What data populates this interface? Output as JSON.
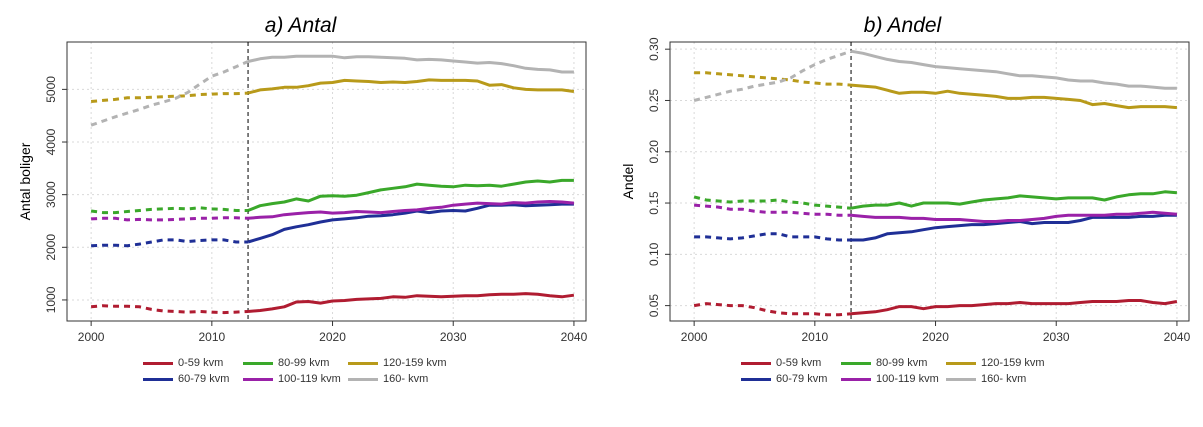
{
  "panels": [
    {
      "title": "a) Antal"
    },
    {
      "title": "b) Andel"
    }
  ],
  "legend": [
    {
      "label": "0-59 kvm",
      "color": "#b01c31"
    },
    {
      "label": "60-79 kvm",
      "color": "#1f2f96"
    },
    {
      "label": "80-99 kvm",
      "color": "#3aa82a"
    },
    {
      "label": "100-119 kvm",
      "color": "#9a21a8"
    },
    {
      "label": "120-159 kvm",
      "color": "#b89a1a"
    },
    {
      "label": "160- kvm",
      "color": "#b3b3b3"
    }
  ],
  "chart_data": [
    {
      "type": "line",
      "title": "a) Antal",
      "xlabel": "",
      "ylabel": "Antal boliger",
      "xlim": [
        1998,
        2041
      ],
      "ylim": [
        600,
        5900
      ],
      "xticks": [
        2000,
        2010,
        2020,
        2030,
        2040
      ],
      "yticks": [
        1000,
        2000,
        3000,
        4000,
        5000
      ],
      "grid": true,
      "split_year": 2013,
      "solid_style": "solid (2013 onward)",
      "dashed_style": "dashed (before 2013)",
      "x": [
        2000,
        2001,
        2002,
        2003,
        2004,
        2005,
        2006,
        2007,
        2008,
        2009,
        2010,
        2011,
        2012,
        2013,
        2014,
        2015,
        2016,
        2017,
        2018,
        2019,
        2020,
        2021,
        2022,
        2023,
        2024,
        2025,
        2026,
        2027,
        2028,
        2029,
        2030,
        2031,
        2032,
        2033,
        2034,
        2035,
        2036,
        2037,
        2038,
        2039,
        2040
      ],
      "series": [
        {
          "name": "0-59 kvm",
          "values": [
            870,
            890,
            880,
            880,
            870,
            820,
            790,
            780,
            770,
            780,
            770,
            760,
            770,
            780,
            800,
            830,
            870,
            960,
            970,
            940,
            980,
            990,
            1010,
            1020,
            1030,
            1060,
            1050,
            1080,
            1070,
            1060,
            1070,
            1080,
            1080,
            1100,
            1110,
            1110,
            1120,
            1110,
            1080,
            1060,
            1090
          ]
        },
        {
          "name": "60-79 kvm",
          "values": [
            2030,
            2040,
            2040,
            2030,
            2060,
            2100,
            2140,
            2140,
            2110,
            2130,
            2140,
            2140,
            2100,
            2100,
            2170,
            2240,
            2340,
            2390,
            2430,
            2480,
            2520,
            2540,
            2560,
            2590,
            2600,
            2620,
            2650,
            2690,
            2660,
            2690,
            2700,
            2690,
            2740,
            2800,
            2800,
            2810,
            2790,
            2800,
            2810,
            2820,
            2820
          ]
        },
        {
          "name": "80-99 kvm",
          "values": [
            2690,
            2660,
            2660,
            2680,
            2700,
            2720,
            2730,
            2740,
            2730,
            2750,
            2730,
            2720,
            2700,
            2700,
            2790,
            2830,
            2860,
            2920,
            2880,
            2970,
            2980,
            2970,
            2990,
            3040,
            3090,
            3120,
            3150,
            3200,
            3180,
            3160,
            3150,
            3180,
            3170,
            3180,
            3160,
            3200,
            3240,
            3260,
            3240,
            3270,
            3270
          ]
        },
        {
          "name": "100-119 kvm",
          "values": [
            2540,
            2550,
            2550,
            2520,
            2530,
            2520,
            2520,
            2530,
            2540,
            2550,
            2550,
            2560,
            2560,
            2550,
            2570,
            2580,
            2620,
            2640,
            2660,
            2670,
            2650,
            2660,
            2680,
            2670,
            2660,
            2680,
            2700,
            2710,
            2740,
            2760,
            2800,
            2820,
            2840,
            2830,
            2820,
            2850,
            2840,
            2860,
            2870,
            2860,
            2840
          ]
        },
        {
          "name": "120-159 kvm",
          "values": [
            4770,
            4790,
            4810,
            4840,
            4840,
            4850,
            4860,
            4870,
            4880,
            4900,
            4910,
            4920,
            4920,
            4930,
            4990,
            5010,
            5040,
            5040,
            5070,
            5120,
            5130,
            5170,
            5160,
            5150,
            5130,
            5140,
            5130,
            5150,
            5180,
            5170,
            5170,
            5170,
            5160,
            5080,
            5090,
            5030,
            5000,
            4990,
            4990,
            4990,
            4960
          ]
        },
        {
          "name": "160- kvm",
          "values": [
            4320,
            4400,
            4480,
            4550,
            4620,
            4700,
            4760,
            4830,
            4940,
            5100,
            5250,
            5330,
            5430,
            5530,
            5580,
            5610,
            5610,
            5630,
            5630,
            5630,
            5630,
            5600,
            5620,
            5620,
            5610,
            5600,
            5590,
            5560,
            5570,
            5560,
            5540,
            5520,
            5500,
            5510,
            5490,
            5450,
            5400,
            5380,
            5370,
            5330,
            5330
          ]
        }
      ]
    },
    {
      "type": "line",
      "title": "b) Andel",
      "xlabel": "",
      "ylabel": "Andel",
      "xlim": [
        1998,
        2041
      ],
      "ylim": [
        0.035,
        0.307
      ],
      "xticks": [
        2000,
        2010,
        2020,
        2030,
        2040
      ],
      "yticks": [
        0.05,
        0.1,
        0.15,
        0.2,
        0.25,
        0.3
      ],
      "ytick_labels": [
        "0.05",
        "0.10",
        "0.15",
        "0.20",
        "0.25",
        "0.30"
      ],
      "grid": true,
      "split_year": 2013,
      "solid_style": "solid (2013 onward)",
      "dashed_style": "dashed (before 2013)",
      "x": [
        2000,
        2001,
        2002,
        2003,
        2004,
        2005,
        2006,
        2007,
        2008,
        2009,
        2010,
        2011,
        2012,
        2013,
        2014,
        2015,
        2016,
        2017,
        2018,
        2019,
        2020,
        2021,
        2022,
        2023,
        2024,
        2025,
        2026,
        2027,
        2028,
        2029,
        2030,
        2031,
        2032,
        2033,
        2034,
        2035,
        2036,
        2037,
        2038,
        2039,
        2040
      ],
      "series": [
        {
          "name": "0-59 kvm",
          "values": [
            0.05,
            0.052,
            0.051,
            0.05,
            0.05,
            0.048,
            0.045,
            0.043,
            0.042,
            0.042,
            0.042,
            0.041,
            0.041,
            0.042,
            0.043,
            0.044,
            0.046,
            0.049,
            0.049,
            0.047,
            0.049,
            0.049,
            0.05,
            0.05,
            0.051,
            0.052,
            0.052,
            0.053,
            0.052,
            0.052,
            0.052,
            0.052,
            0.053,
            0.054,
            0.054,
            0.054,
            0.055,
            0.055,
            0.053,
            0.052,
            0.054
          ]
        },
        {
          "name": "60-79 kvm",
          "values": [
            0.117,
            0.117,
            0.116,
            0.115,
            0.116,
            0.118,
            0.12,
            0.12,
            0.117,
            0.117,
            0.117,
            0.115,
            0.114,
            0.114,
            0.114,
            0.116,
            0.12,
            0.121,
            0.122,
            0.124,
            0.126,
            0.127,
            0.128,
            0.129,
            0.129,
            0.13,
            0.131,
            0.132,
            0.13,
            0.131,
            0.131,
            0.131,
            0.133,
            0.136,
            0.136,
            0.136,
            0.136,
            0.137,
            0.137,
            0.138,
            0.138
          ]
        },
        {
          "name": "80-99 kvm",
          "values": [
            0.156,
            0.153,
            0.152,
            0.151,
            0.152,
            0.152,
            0.152,
            0.153,
            0.151,
            0.15,
            0.148,
            0.147,
            0.146,
            0.145,
            0.147,
            0.148,
            0.148,
            0.15,
            0.147,
            0.15,
            0.15,
            0.15,
            0.149,
            0.151,
            0.153,
            0.154,
            0.155,
            0.157,
            0.156,
            0.155,
            0.154,
            0.155,
            0.155,
            0.155,
            0.153,
            0.156,
            0.158,
            0.159,
            0.159,
            0.161,
            0.16
          ]
        },
        {
          "name": "100-119 kvm",
          "values": [
            0.148,
            0.147,
            0.146,
            0.144,
            0.144,
            0.142,
            0.141,
            0.141,
            0.141,
            0.14,
            0.139,
            0.139,
            0.138,
            0.138,
            0.137,
            0.136,
            0.136,
            0.136,
            0.135,
            0.135,
            0.134,
            0.134,
            0.134,
            0.133,
            0.132,
            0.132,
            0.133,
            0.133,
            0.134,
            0.135,
            0.137,
            0.138,
            0.138,
            0.138,
            0.138,
            0.139,
            0.139,
            0.14,
            0.141,
            0.14,
            0.139
          ]
        },
        {
          "name": "120-159 kvm",
          "values": [
            0.277,
            0.277,
            0.276,
            0.275,
            0.274,
            0.273,
            0.272,
            0.271,
            0.27,
            0.268,
            0.267,
            0.266,
            0.266,
            0.265,
            0.264,
            0.263,
            0.26,
            0.257,
            0.258,
            0.258,
            0.257,
            0.259,
            0.257,
            0.256,
            0.255,
            0.254,
            0.252,
            0.252,
            0.253,
            0.253,
            0.252,
            0.251,
            0.25,
            0.246,
            0.247,
            0.245,
            0.243,
            0.244,
            0.244,
            0.244,
            0.243
          ]
        },
        {
          "name": "160- kvm",
          "values": [
            0.25,
            0.253,
            0.256,
            0.259,
            0.261,
            0.264,
            0.266,
            0.268,
            0.272,
            0.279,
            0.285,
            0.29,
            0.294,
            0.298,
            0.296,
            0.293,
            0.29,
            0.288,
            0.287,
            0.285,
            0.283,
            0.282,
            0.281,
            0.28,
            0.279,
            0.278,
            0.276,
            0.274,
            0.274,
            0.273,
            0.272,
            0.27,
            0.269,
            0.269,
            0.267,
            0.266,
            0.264,
            0.264,
            0.263,
            0.262,
            0.262
          ]
        }
      ]
    }
  ]
}
